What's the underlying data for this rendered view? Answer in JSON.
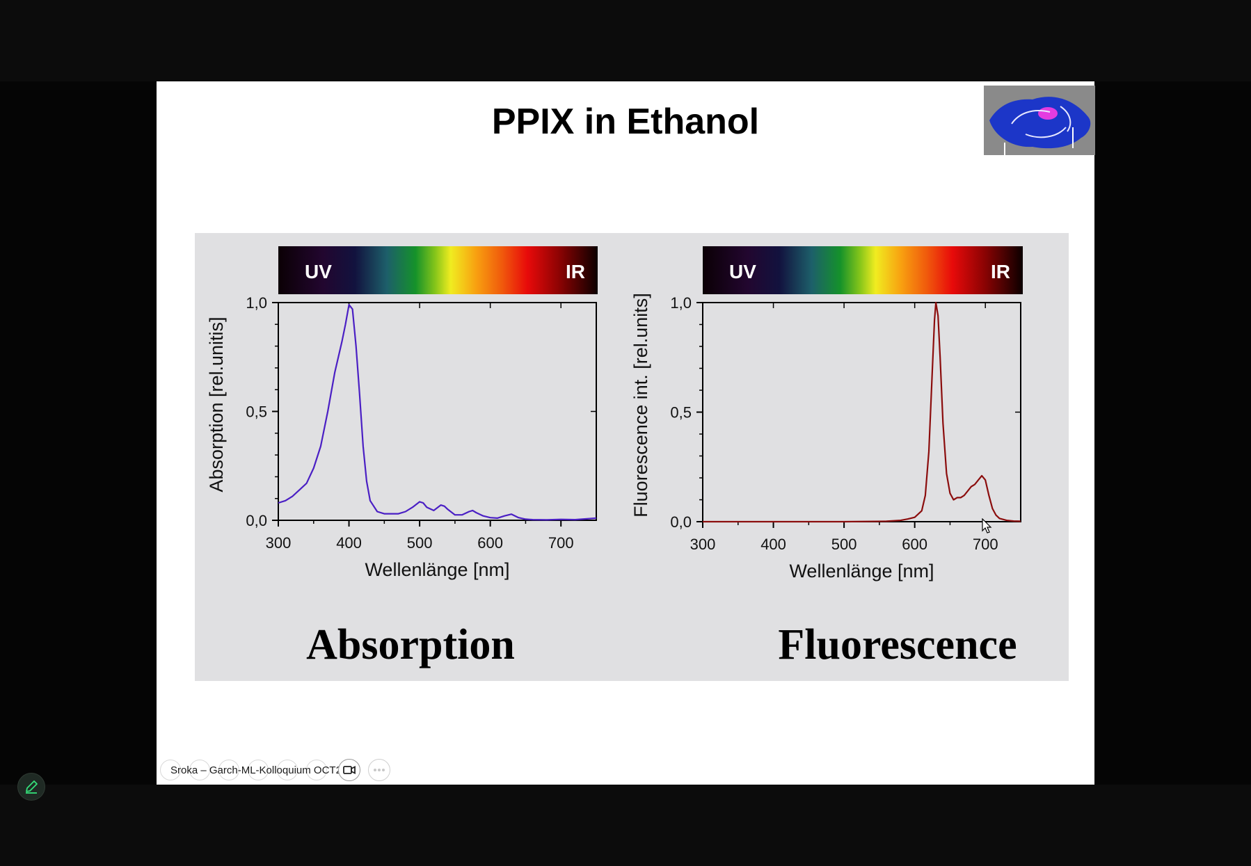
{
  "slide": {
    "title": "PPIX in Ethanol"
  },
  "meeting": {
    "label": "Sroka – Garch-ML-Kolloquium OCT2"
  },
  "colors": {
    "absorption_line": "#4a1fc4",
    "fluorescence_line": "#8b0d0d",
    "panel_bg": "#e0e0e2",
    "annotate_icon": "#35e07a"
  },
  "icons": {
    "annotate": "pencil-icon",
    "video": "video-camera-icon",
    "more": "ellipsis-icon",
    "cursor": "mouse-pointer-icon"
  },
  "chart_data": [
    {
      "type": "line",
      "title": "",
      "caption": "Absorption",
      "xlabel": "Wellenlänge [nm]",
      "ylabel": "Absorption [rel.unitis]",
      "xlim": [
        300,
        750
      ],
      "ylim": [
        0,
        1.0
      ],
      "xticks": [
        "300",
        "400",
        "500",
        "600",
        "700"
      ],
      "yticks": [
        "0,0",
        "0,5",
        "1,0"
      ],
      "spectrum_labels": [
        "UV",
        "IR"
      ],
      "grid": false,
      "series": [
        {
          "x": [
            300,
            310,
            320,
            330,
            340,
            350,
            360,
            370,
            380,
            390,
            395,
            400,
            405,
            410,
            415,
            420,
            425,
            430,
            440,
            450,
            460,
            470,
            480,
            490,
            500,
            505,
            510,
            520,
            530,
            535,
            540,
            550,
            560,
            570,
            575,
            580,
            590,
            600,
            610,
            620,
            630,
            640,
            650,
            660,
            680,
            700,
            720,
            750
          ],
          "y": [
            0.08,
            0.09,
            0.11,
            0.14,
            0.17,
            0.24,
            0.34,
            0.5,
            0.68,
            0.82,
            0.9,
            0.99,
            0.97,
            0.8,
            0.58,
            0.34,
            0.18,
            0.09,
            0.04,
            0.03,
            0.03,
            0.03,
            0.04,
            0.06,
            0.085,
            0.08,
            0.06,
            0.045,
            0.07,
            0.065,
            0.05,
            0.025,
            0.025,
            0.04,
            0.045,
            0.035,
            0.02,
            0.012,
            0.01,
            0.02,
            0.028,
            0.012,
            0.005,
            0.003,
            0.002,
            0.004,
            0.003,
            0.01
          ]
        }
      ]
    },
    {
      "type": "line",
      "title": "",
      "caption": "Fluorescence",
      "xlabel": "Wellenlänge [nm]",
      "ylabel": "Fluorescence int. [rel.units]",
      "xlim": [
        300,
        750
      ],
      "ylim": [
        0,
        1.0
      ],
      "xticks": [
        "300",
        "400",
        "500",
        "600",
        "700"
      ],
      "yticks": [
        "0,0",
        "0,5",
        "1,0"
      ],
      "spectrum_labels": [
        "UV",
        "IR"
      ],
      "grid": false,
      "series": [
        {
          "x": [
            300,
            500,
            560,
            580,
            590,
            600,
            610,
            615,
            620,
            625,
            628,
            630,
            633,
            636,
            640,
            645,
            650,
            655,
            660,
            665,
            670,
            675,
            680,
            685,
            690,
            695,
            700,
            705,
            710,
            715,
            720,
            730,
            740,
            750
          ],
          "y": [
            0,
            0,
            0.002,
            0.006,
            0.012,
            0.02,
            0.05,
            0.12,
            0.32,
            0.7,
            0.92,
            1.0,
            0.94,
            0.75,
            0.45,
            0.22,
            0.13,
            0.1,
            0.11,
            0.11,
            0.12,
            0.14,
            0.16,
            0.17,
            0.19,
            0.21,
            0.19,
            0.12,
            0.06,
            0.03,
            0.015,
            0.006,
            0.003,
            0.002
          ]
        }
      ]
    }
  ]
}
